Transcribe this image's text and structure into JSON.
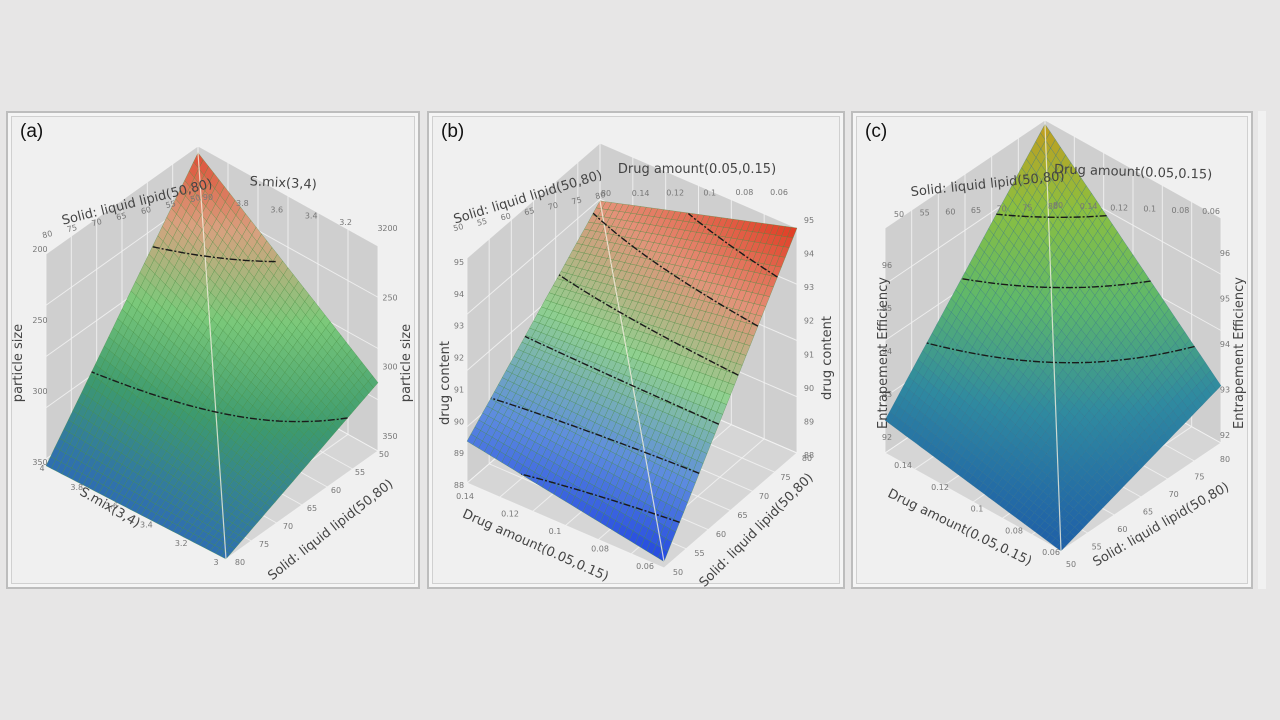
{
  "figure": {
    "background": "#e7e6e6",
    "panels": [
      {
        "id": "a",
        "label": "(a)"
      },
      {
        "id": "b",
        "label": "(b)"
      },
      {
        "id": "c",
        "label": "(c)"
      }
    ]
  },
  "chart_data": [
    {
      "type": "surface3d",
      "panel_label": "(a)",
      "title": "",
      "x_axis": {
        "label": "S.mix(3,4)",
        "range": [
          3,
          4
        ],
        "ticks": [
          "3",
          "3.2",
          "3.4",
          "3.6",
          "3.8",
          "4"
        ]
      },
      "y_axis": {
        "label": "Solid: liquid lipid(50,80)",
        "range": [
          50,
          80
        ],
        "ticks": [
          "50",
          "55",
          "60",
          "65",
          "70",
          "75",
          "80"
        ]
      },
      "z_axis": {
        "label": "particle size",
        "range": [
          350,
          200
        ],
        "reversed": true,
        "ticks": [
          "200",
          "250",
          "300",
          "350"
        ]
      },
      "top_back_ticks": {
        "lipid": [
          "80",
          "75",
          "70",
          "65",
          "60",
          "55",
          "50"
        ],
        "smix": [
          "3.8",
          "3.6",
          "3.4",
          "3.2",
          "3"
        ]
      },
      "corner_values": {
        "smix4_lipid50": 210,
        "smix3_lipid80": 350,
        "smix4_lipid80": 265,
        "smix3_lipid50": 250
      },
      "contours": [
        250,
        310
      ],
      "colormap": [
        "#2f6fb0",
        "#3d9a6f",
        "#7bc97a",
        "#d9a07f",
        "#e0402a"
      ],
      "grid": true
    },
    {
      "type": "surface3d",
      "panel_label": "(b)",
      "title": "",
      "x_axis": {
        "label": "Drug amount(0.05,0.15)",
        "range": [
          0.05,
          0.15
        ],
        "ticks": [
          "0.06",
          "0.08",
          "0.1",
          "0.12",
          "0.14"
        ]
      },
      "y_axis": {
        "label": "Solid: liquid lipid(50,80)",
        "range": [
          50,
          80
        ],
        "ticks": [
          "50",
          "55",
          "60",
          "65",
          "70",
          "75",
          "80"
        ]
      },
      "z_axis": {
        "label": "drug content",
        "range": [
          88,
          95
        ],
        "ticks": [
          "88",
          "89",
          "90",
          "91",
          "92",
          "93",
          "94",
          "95"
        ]
      },
      "top_back_ticks": {
        "lipid": [
          "50",
          "55",
          "60",
          "65",
          "70",
          "75",
          "80"
        ],
        "drug": [
          "0.14",
          "0.12",
          "0.1",
          "0.08",
          "0.06"
        ]
      },
      "corner_values": {
        "drug0.05_lipid50": 88.2,
        "drug0.15_lipid50": 89.3,
        "drug0.05_lipid80": 95.0,
        "drug0.15_lipid80": 93.2
      },
      "contours": [
        89,
        90,
        91,
        92,
        93,
        94
      ],
      "colormap": [
        "#1c3fe0",
        "#5d8be0",
        "#8fd08f",
        "#e59078",
        "#e03a22"
      ],
      "grid": true
    },
    {
      "type": "surface3d",
      "panel_label": "(c)",
      "title": "",
      "x_axis": {
        "label": "Drug amount(0.05,0.15)",
        "range": [
          0.05,
          0.15
        ],
        "ticks": [
          "0.06",
          "0.08",
          "0.1",
          "0.12",
          "0.14"
        ]
      },
      "y_axis": {
        "label": "Solid: liquid lipid(50,80)",
        "range": [
          50,
          80
        ],
        "ticks": [
          "50",
          "55",
          "60",
          "65",
          "70",
          "75",
          "80"
        ]
      },
      "z_axis": {
        "label": "Entrapement Efficiency",
        "range": [
          91,
          96.5
        ],
        "ticks": [
          "92",
          "93",
          "94",
          "95",
          "96"
        ]
      },
      "top_back_ticks": {
        "lipid": [
          "50",
          "55",
          "60",
          "65",
          "70",
          "75",
          "80"
        ],
        "drug": [
          "0.14",
          "0.12",
          "0.1",
          "0.08",
          "0.06"
        ]
      },
      "corner_values": {
        "drug0.05_lipid50": 91.0,
        "drug0.15_lipid50": 91.8,
        "drug0.05_lipid80": 92.4,
        "drug0.15_lipid80": 96.4
      },
      "contours": [
        93,
        94,
        95
      ],
      "colormap": [
        "#1f5fa8",
        "#2f8aa0",
        "#5fb86a",
        "#8cbf3f",
        "#c69a1c"
      ],
      "grid": true
    }
  ]
}
